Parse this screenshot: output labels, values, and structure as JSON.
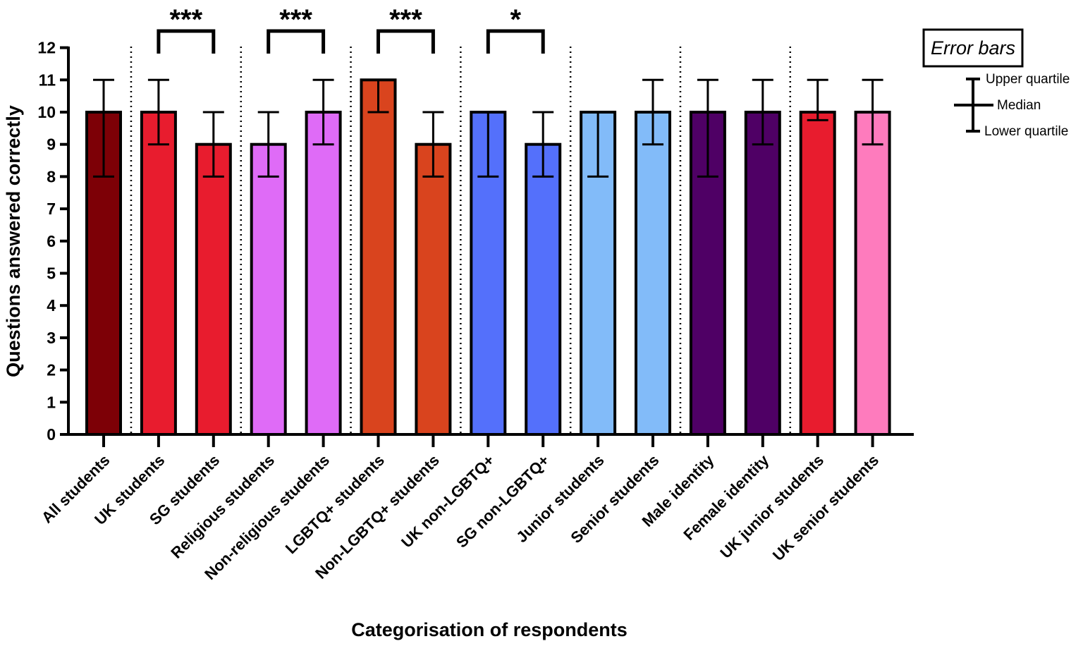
{
  "chart_data": {
    "type": "bar",
    "title": "",
    "xlabel": "Categorisation of respondents",
    "ylabel": "Questions answered correctly",
    "ylim": [
      0,
      12
    ],
    "yticks": [
      0,
      1,
      2,
      3,
      4,
      5,
      6,
      7,
      8,
      9,
      10,
      11,
      12
    ],
    "categories": [
      "All students",
      "UK students",
      "SG students",
      "Religious students",
      "Non-religious students",
      "LGBTQ+ students",
      "Non-LGBTQ+ students",
      "UK non-LGBTQ+",
      "SG non-LGBTQ+",
      "Junior students",
      "Senior students",
      "Male identity",
      "Female identity",
      "UK junior students",
      "UK senior students"
    ],
    "values": [
      10,
      10,
      9,
      9,
      10,
      11,
      9,
      10,
      9,
      10,
      10,
      10,
      10,
      10,
      10
    ],
    "lower_quartile": [
      8,
      9,
      8,
      8,
      9,
      10,
      8,
      8,
      8,
      8,
      9,
      8,
      9,
      9.75,
      9
    ],
    "upper_quartile": [
      11,
      11,
      10,
      10,
      11,
      11,
      10,
      10,
      10,
      10,
      11,
      11,
      11,
      11,
      11
    ],
    "colors": [
      "#7d0006",
      "#e81c2e",
      "#e81c2e",
      "#df6bf7",
      "#df6bf7",
      "#d9441e",
      "#d9441e",
      "#5470fb",
      "#5470fb",
      "#82bbf9",
      "#82bbf9",
      "#4f0065",
      "#4f0065",
      "#e81c2e",
      "#fe7bbd"
    ],
    "group_dividers_after": [
      0,
      2,
      4,
      6,
      8,
      10,
      12
    ],
    "significance": [
      {
        "from": 1,
        "to": 2,
        "label": "***"
      },
      {
        "from": 3,
        "to": 4,
        "label": "***"
      },
      {
        "from": 5,
        "to": 6,
        "label": "***"
      },
      {
        "from": 7,
        "to": 8,
        "label": "*"
      }
    ],
    "legend": {
      "title": "Error bars",
      "upper": "Upper quartile",
      "median": "Median",
      "lower": "Lower quartile"
    }
  }
}
